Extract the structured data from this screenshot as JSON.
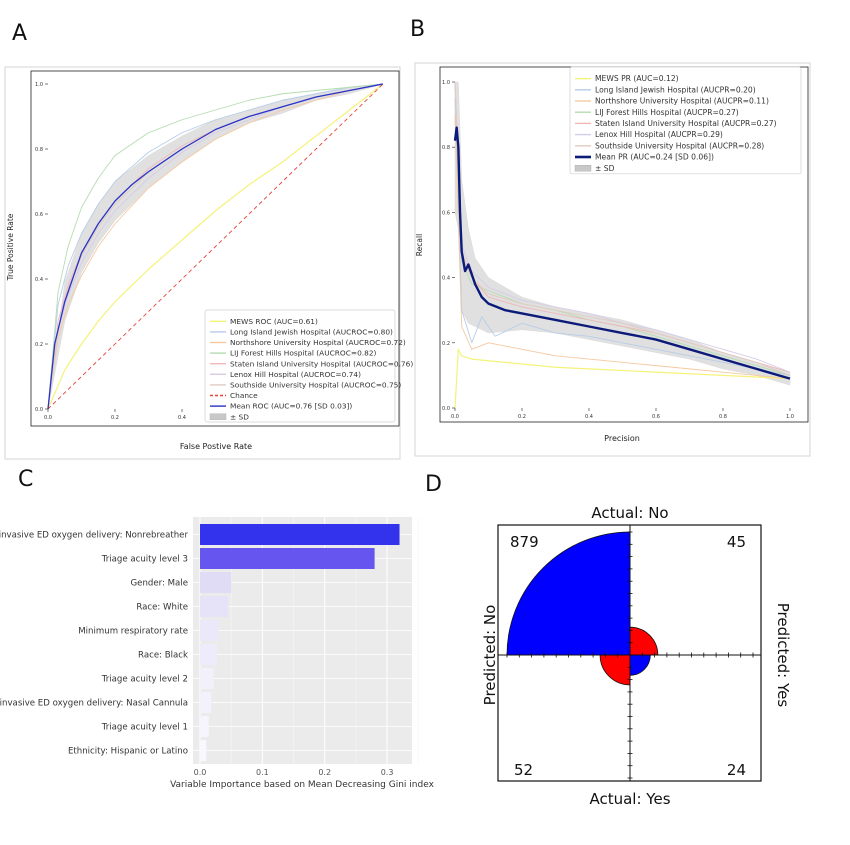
{
  "panels": {
    "a": {
      "letter": "A"
    },
    "b": {
      "letter": "B"
    },
    "c": {
      "letter": "C"
    },
    "d": {
      "letter": "D"
    }
  },
  "chart_data": [
    {
      "panel": "A",
      "type": "line",
      "xlabel": "False Postive Rate",
      "ylabel": "True Positive Rate",
      "xlim": [
        0,
        1
      ],
      "ylim": [
        0,
        1
      ],
      "xticks": [
        "0.0",
        "0.2",
        "0.4",
        "0.6",
        "0.8",
        "1.0"
      ],
      "yticks": [
        "0.0",
        "0.2",
        "0.4",
        "0.6",
        "0.8",
        "1.0"
      ],
      "legend_position": "lower-right",
      "legend": [
        {
          "label": "MEWS ROC (AUC=0.61)",
          "color": "#f5f27a"
        },
        {
          "label": "Long Island Jewish Hospital (AUCROC=0.80)",
          "color": "#b7cde8"
        },
        {
          "label": "Northshore University Hospital (AUCROC=0.72)",
          "color": "#f5c9a0"
        },
        {
          "label": "LIJ Forest Hills Hospital (AUCROC=0.82)",
          "color": "#b5ddb0"
        },
        {
          "label": "Staten Island University Hospital (AUCROC=0.76)",
          "color": "#f0b8b8"
        },
        {
          "label": "Lenox Hill Hospital (AUCROC=0.74)",
          "color": "#d6cce6"
        },
        {
          "label": "Southside University Hospital (AUCROC=0.75)",
          "color": "#e2cbc2"
        },
        {
          "label": "Chance",
          "color": "#e8413a"
        },
        {
          "label": "Mean ROC (AUC=0.76 [SD 0.03])",
          "color": "#2b32c8"
        },
        {
          "label": "± SD",
          "color": "#c8c8c8"
        }
      ],
      "series": [
        {
          "name": "MEWS ROC (AUC=0.61)",
          "x": [
            0,
            0.05,
            0.1,
            0.15,
            0.2,
            0.3,
            0.4,
            0.5,
            0.6,
            0.7,
            0.8,
            0.9,
            1.0
          ],
          "y": [
            0,
            0.12,
            0.2,
            0.27,
            0.33,
            0.43,
            0.52,
            0.61,
            0.69,
            0.76,
            0.84,
            0.92,
            1.0
          ]
        },
        {
          "name": "Long Island Jewish Hospital (AUCROC=0.80)",
          "x": [
            0,
            0.03,
            0.06,
            0.1,
            0.15,
            0.2,
            0.3,
            0.4,
            0.5,
            0.6,
            0.7,
            0.8,
            0.9,
            1.0
          ],
          "y": [
            0,
            0.32,
            0.44,
            0.54,
            0.63,
            0.7,
            0.79,
            0.85,
            0.89,
            0.92,
            0.95,
            0.97,
            0.99,
            1.0
          ]
        },
        {
          "name": "Northshore University Hospital (AUCROC=0.72)",
          "x": [
            0,
            0.03,
            0.06,
            0.1,
            0.15,
            0.2,
            0.3,
            0.4,
            0.5,
            0.6,
            0.7,
            0.8,
            0.9,
            1.0
          ],
          "y": [
            0,
            0.22,
            0.32,
            0.41,
            0.5,
            0.57,
            0.68,
            0.76,
            0.83,
            0.88,
            0.92,
            0.95,
            0.98,
            1.0
          ]
        },
        {
          "name": "LIJ Forest Hills Hospital (AUCROC=0.82)",
          "x": [
            0,
            0.03,
            0.06,
            0.1,
            0.15,
            0.2,
            0.3,
            0.4,
            0.5,
            0.6,
            0.7,
            0.8,
            0.9,
            1.0
          ],
          "y": [
            0,
            0.36,
            0.5,
            0.62,
            0.71,
            0.78,
            0.85,
            0.89,
            0.92,
            0.95,
            0.97,
            0.98,
            0.99,
            1.0
          ]
        },
        {
          "name": "Staten Island University Hospital (AUCROC=0.76)",
          "x": [
            0,
            0.03,
            0.06,
            0.1,
            0.15,
            0.2,
            0.3,
            0.4,
            0.5,
            0.6,
            0.7,
            0.8,
            0.9,
            1.0
          ],
          "y": [
            0,
            0.27,
            0.38,
            0.48,
            0.57,
            0.64,
            0.74,
            0.81,
            0.86,
            0.9,
            0.93,
            0.96,
            0.98,
            1.0
          ]
        },
        {
          "name": "Lenox Hill Hospital (AUCROC=0.74)",
          "x": [
            0,
            0.03,
            0.06,
            0.1,
            0.15,
            0.2,
            0.3,
            0.4,
            0.5,
            0.6,
            0.7,
            0.8,
            0.9,
            1.0
          ],
          "y": [
            0,
            0.24,
            0.35,
            0.45,
            0.54,
            0.61,
            0.71,
            0.79,
            0.85,
            0.89,
            0.93,
            0.96,
            0.98,
            1.0
          ]
        },
        {
          "name": "Southside University Hospital (AUCROC=0.75)",
          "x": [
            0,
            0.03,
            0.06,
            0.1,
            0.15,
            0.2,
            0.3,
            0.4,
            0.5,
            0.6,
            0.7,
            0.8,
            0.9,
            1.0
          ],
          "y": [
            0,
            0.25,
            0.37,
            0.47,
            0.56,
            0.63,
            0.73,
            0.8,
            0.86,
            0.9,
            0.93,
            0.96,
            0.98,
            1.0
          ]
        },
        {
          "name": "Chance",
          "x": [
            0,
            1
          ],
          "y": [
            0,
            1
          ]
        },
        {
          "name": "Mean ROC (AUC=0.76 [SD 0.03])",
          "x": [
            0,
            0.02,
            0.05,
            0.1,
            0.15,
            0.2,
            0.25,
            0.3,
            0.4,
            0.5,
            0.6,
            0.7,
            0.8,
            0.9,
            1.0
          ],
          "y": [
            0,
            0.2,
            0.33,
            0.48,
            0.57,
            0.64,
            0.69,
            0.73,
            0.8,
            0.86,
            0.9,
            0.93,
            0.96,
            0.98,
            1.0
          ]
        },
        {
          "name": "± SD",
          "x": [
            0,
            0.05,
            0.1,
            0.15,
            0.2,
            0.3,
            0.4,
            0.5,
            0.6,
            0.7,
            0.8,
            0.9,
            1.0
          ],
          "upper": [
            0,
            0.39,
            0.54,
            0.63,
            0.7,
            0.78,
            0.84,
            0.89,
            0.92,
            0.95,
            0.97,
            0.99,
            1.0
          ],
          "lower": [
            0,
            0.27,
            0.42,
            0.51,
            0.58,
            0.68,
            0.76,
            0.83,
            0.88,
            0.91,
            0.95,
            0.97,
            1.0
          ]
        }
      ]
    },
    {
      "panel": "B",
      "type": "line",
      "xlabel": "Precision",
      "ylabel": "Recall",
      "xlim": [
        0,
        1
      ],
      "ylim": [
        0,
        1
      ],
      "xticks": [
        "0.0",
        "0.2",
        "0.4",
        "0.6",
        "0.8",
        "1.0"
      ],
      "yticks": [
        "0.0",
        "0.2",
        "0.4",
        "0.6",
        "0.8",
        "1.0"
      ],
      "legend_position": "upper-right",
      "legend": [
        {
          "label": "MEWS PR (AUC=0.12)",
          "color": "#f5f27a"
        },
        {
          "label": "Long Island Jewish Hospital (AUCPR=0.20)",
          "color": "#b7cde8"
        },
        {
          "label": "Northshore University Hospital (AUCPR=0.11)",
          "color": "#f5c9a0"
        },
        {
          "label": "LIJ Forest Hills Hospital (AUCPR=0.27)",
          "color": "#b5ddb0"
        },
        {
          "label": "Staten Island University Hospital (AUCPR=0.27)",
          "color": "#f0b8b8"
        },
        {
          "label": "Lenox Hill Hospital (AUCPR=0.29)",
          "color": "#d6cce6"
        },
        {
          "label": "Southside University Hospital (AUCPR=0.28)",
          "color": "#e2cbc2"
        },
        {
          "label": "Mean PR (AUC=0.24 [SD 0.06])",
          "color": "#0c1a7a"
        },
        {
          "label": "± SD",
          "color": "#c8c8c8"
        }
      ],
      "series": [
        {
          "name": "MEWS PR (AUC=0.12)",
          "x": [
            0,
            0.01,
            0.02,
            0.05,
            0.1,
            0.2,
            0.3,
            0.4,
            0.5,
            0.6,
            0.7,
            0.8,
            0.9,
            1.0
          ],
          "y": [
            0,
            0.18,
            0.16,
            0.15,
            0.145,
            0.135,
            0.125,
            0.12,
            0.115,
            0.11,
            0.105,
            0.1,
            0.095,
            0.09
          ]
        },
        {
          "name": "Long Island Jewish Hospital (AUCPR=0.20)",
          "x": [
            0,
            0.02,
            0.05,
            0.08,
            0.12,
            0.2,
            0.3,
            0.4,
            0.5,
            0.6,
            0.7,
            0.8,
            0.9,
            1.0
          ],
          "y": [
            0.95,
            0.3,
            0.2,
            0.28,
            0.22,
            0.26,
            0.23,
            0.22,
            0.2,
            0.18,
            0.16,
            0.14,
            0.12,
            0.1
          ]
        },
        {
          "name": "Northshore University Hospital (AUCPR=0.11)",
          "x": [
            0,
            0.02,
            0.05,
            0.1,
            0.2,
            0.3,
            0.4,
            0.5,
            0.6,
            0.7,
            0.8,
            0.9,
            1.0
          ],
          "y": [
            0.9,
            0.25,
            0.18,
            0.2,
            0.18,
            0.16,
            0.15,
            0.14,
            0.13,
            0.12,
            0.11,
            0.1,
            0.09
          ]
        },
        {
          "name": "LIJ Forest Hills Hospital (AUCPR=0.27)",
          "x": [
            0,
            0.02,
            0.05,
            0.1,
            0.2,
            0.3,
            0.4,
            0.5,
            0.6,
            0.7,
            0.8,
            0.9,
            1.0
          ],
          "y": [
            1.0,
            0.45,
            0.38,
            0.36,
            0.32,
            0.3,
            0.27,
            0.25,
            0.22,
            0.19,
            0.16,
            0.13,
            0.1
          ]
        },
        {
          "name": "Staten Island University Hospital (AUCPR=0.27)",
          "x": [
            0,
            0.02,
            0.05,
            0.1,
            0.2,
            0.3,
            0.4,
            0.5,
            0.6,
            0.7,
            0.8,
            0.9,
            1.0
          ],
          "y": [
            1.0,
            0.48,
            0.4,
            0.34,
            0.31,
            0.29,
            0.27,
            0.25,
            0.23,
            0.2,
            0.17,
            0.14,
            0.11
          ]
        },
        {
          "name": "Lenox Hill Hospital (AUCPR=0.29)",
          "x": [
            0,
            0.02,
            0.05,
            0.1,
            0.2,
            0.3,
            0.4,
            0.5,
            0.6,
            0.7,
            0.8,
            0.9,
            1.0
          ],
          "y": [
            1.0,
            0.5,
            0.42,
            0.37,
            0.33,
            0.31,
            0.29,
            0.26,
            0.24,
            0.21,
            0.18,
            0.15,
            0.11
          ]
        },
        {
          "name": "Southside University Hospital (AUCPR=0.28)",
          "x": [
            0,
            0.02,
            0.05,
            0.1,
            0.2,
            0.3,
            0.4,
            0.5,
            0.6,
            0.7,
            0.8,
            0.9,
            1.0
          ],
          "y": [
            1.0,
            0.46,
            0.4,
            0.35,
            0.32,
            0.3,
            0.28,
            0.26,
            0.23,
            0.2,
            0.17,
            0.14,
            0.1
          ]
        },
        {
          "name": "Mean PR (AUC=0.24 [SD 0.06])",
          "x": [
            0,
            0.005,
            0.01,
            0.015,
            0.02,
            0.03,
            0.04,
            0.06,
            0.08,
            0.1,
            0.15,
            0.2,
            0.3,
            0.4,
            0.5,
            0.6,
            0.7,
            0.8,
            0.9,
            1.0
          ],
          "y": [
            0.82,
            0.86,
            0.8,
            0.6,
            0.48,
            0.42,
            0.44,
            0.38,
            0.34,
            0.32,
            0.3,
            0.29,
            0.27,
            0.25,
            0.23,
            0.21,
            0.18,
            0.15,
            0.12,
            0.09
          ]
        },
        {
          "name": "± SD",
          "x": [
            0,
            0.01,
            0.02,
            0.04,
            0.06,
            0.1,
            0.2,
            0.3,
            0.4,
            0.5,
            0.6,
            0.7,
            0.8,
            0.9,
            1.0
          ],
          "upper": [
            1.0,
            1.0,
            0.7,
            0.55,
            0.46,
            0.4,
            0.34,
            0.31,
            0.29,
            0.27,
            0.24,
            0.21,
            0.17,
            0.14,
            0.11
          ],
          "lower": [
            0.6,
            0.55,
            0.3,
            0.26,
            0.25,
            0.23,
            0.24,
            0.23,
            0.21,
            0.19,
            0.17,
            0.15,
            0.12,
            0.1,
            0.07
          ]
        }
      ]
    },
    {
      "panel": "C",
      "type": "bar",
      "orientation": "horizontal",
      "xlabel": "Variable Importance based on Mean Decreasing Gini index",
      "ylabel": "",
      "xlim": [
        0,
        0.34
      ],
      "xticks": [
        "0.0",
        "0.1",
        "0.2",
        "0.3"
      ],
      "grid": true,
      "categories": [
        "Most invasive ED oxygen delivery: Nonrebreather",
        "Triage acuity level 3",
        "Gender: Male",
        "Race: White",
        "Minimum respiratory rate",
        "Race: Black",
        "Triage acuity level 2",
        "Most invasive ED oxygen delivery: Nasal Cannula",
        "Triage acuity level 1",
        "Ethnicity: Hispanic or Latino"
      ],
      "values": [
        0.32,
        0.28,
        0.05,
        0.045,
        0.03,
        0.027,
        0.022,
        0.018,
        0.014,
        0.01
      ],
      "colors": [
        "#3333ee",
        "#6655ee",
        "#e0dcf6",
        "#e6e2f8",
        "#ebe8f9",
        "#eeecfa",
        "#f1f0fb",
        "#f3f2fc",
        "#f6f5fd",
        "#f8f8fe"
      ]
    },
    {
      "panel": "D",
      "type": "fourfold",
      "labels": {
        "top": "Actual: No",
        "bottom": "Actual: Yes",
        "left": "Predicted: No",
        "right": "Predicted: Yes"
      },
      "cells": [
        {
          "name": "top-left",
          "actual": "No",
          "predicted": "No",
          "count": 879,
          "color": "#0000ff"
        },
        {
          "name": "top-right",
          "actual": "No",
          "predicted": "Yes",
          "count": 45,
          "color": "#ff0000"
        },
        {
          "name": "bottom-left",
          "actual": "Yes",
          "predicted": "No",
          "count": 52,
          "color": "#ff0000"
        },
        {
          "name": "bottom-right",
          "actual": "Yes",
          "predicted": "Yes",
          "count": 24,
          "color": "#0000ff"
        }
      ]
    }
  ]
}
